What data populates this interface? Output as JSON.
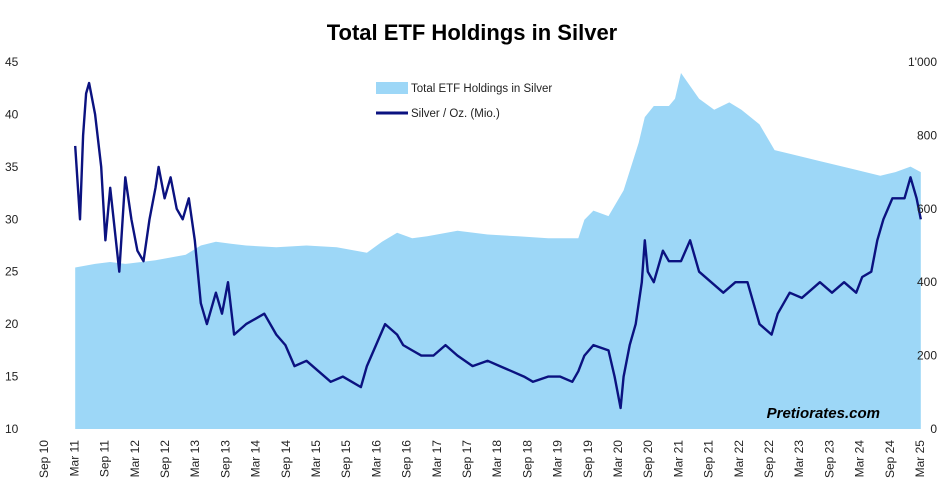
{
  "chart_data": {
    "type": "line",
    "title": "Total ETF Holdings in Silver",
    "xlabel": "",
    "ylabel": "",
    "x_ticks": [
      "Sep 10",
      "Mar 11",
      "Sep 11",
      "Mar 12",
      "Sep 12",
      "Mar 13",
      "Sep 13",
      "Mar 14",
      "Sep 14",
      "Mar 15",
      "Sep 15",
      "Mar 16",
      "Sep 16",
      "Mar 17",
      "Sep 17",
      "Mar 18",
      "Sep 18",
      "Mar 19",
      "Sep 19",
      "Mar 20",
      "Sep 20",
      "Mar 21",
      "Sep 21",
      "Mar 22",
      "Sep 22",
      "Mar 23",
      "Sep 23",
      "Mar 24",
      "Sep 24",
      "Mar 25"
    ],
    "y_left": {
      "min": 10,
      "max": 45,
      "ticks": [
        10,
        15,
        20,
        25,
        30,
        35,
        40,
        45
      ]
    },
    "y_right": {
      "min": 0,
      "max": 1000,
      "ticks": [
        "0",
        "200",
        "400",
        "600",
        "800",
        "1'000"
      ]
    },
    "legend_position": "top-center",
    "series": [
      {
        "name": "Total ETF Holdings in Silver",
        "kind": "area",
        "axis": "right",
        "color": "#9dd7f7",
        "x": [
          2011.17,
          2011.5,
          2011.75,
          2012.0,
          2012.5,
          2013.0,
          2013.25,
          2013.5,
          2013.75,
          2014.0,
          2014.5,
          2015.0,
          2015.5,
          2016.0,
          2016.25,
          2016.5,
          2016.75,
          2017.0,
          2017.5,
          2018.0,
          2018.5,
          2019.0,
          2019.5,
          2019.6,
          2019.75,
          2020.0,
          2020.25,
          2020.5,
          2020.6,
          2020.75,
          2021.0,
          2021.1,
          2021.2,
          2021.5,
          2021.75,
          2022.0,
          2022.2,
          2022.5,
          2022.75,
          2023.0,
          2023.5,
          2024.0,
          2024.5,
          2024.75,
          2025.0,
          2025.17
        ],
        "values": [
          440,
          450,
          455,
          450,
          460,
          475,
          500,
          510,
          505,
          500,
          495,
          500,
          495,
          480,
          510,
          535,
          520,
          525,
          540,
          530,
          525,
          520,
          520,
          570,
          595,
          580,
          650,
          780,
          850,
          880,
          880,
          900,
          970,
          900,
          870,
          890,
          870,
          830,
          760,
          750,
          730,
          710,
          690,
          700,
          715,
          700
        ]
      },
      {
        "name": "Silver / Oz. (Mio.)",
        "kind": "line",
        "axis": "left",
        "color": "#0b1280",
        "x": [
          2011.17,
          2011.25,
          2011.3,
          2011.35,
          2011.4,
          2011.5,
          2011.6,
          2011.67,
          2011.75,
          2011.9,
          2012.0,
          2012.1,
          2012.2,
          2012.3,
          2012.4,
          2012.5,
          2012.55,
          2012.65,
          2012.75,
          2012.85,
          2012.95,
          2013.05,
          2013.15,
          2013.25,
          2013.35,
          2013.5,
          2013.6,
          2013.7,
          2013.8,
          2014.0,
          2014.15,
          2014.3,
          2014.5,
          2014.65,
          2014.8,
          2015.0,
          2015.2,
          2015.4,
          2015.6,
          2015.75,
          2015.9,
          2016.0,
          2016.15,
          2016.3,
          2016.5,
          2016.6,
          2016.75,
          2016.9,
          2017.1,
          2017.3,
          2017.5,
          2017.75,
          2018.0,
          2018.2,
          2018.4,
          2018.6,
          2018.75,
          2019.0,
          2019.2,
          2019.4,
          2019.5,
          2019.6,
          2019.75,
          2020.0,
          2020.1,
          2020.2,
          2020.25,
          2020.35,
          2020.45,
          2020.55,
          2020.6,
          2020.65,
          2020.75,
          2020.9,
          2021.0,
          2021.2,
          2021.35,
          2021.5,
          2021.7,
          2021.9,
          2022.1,
          2022.3,
          2022.5,
          2022.7,
          2022.8,
          2022.9,
          2023.0,
          2023.2,
          2023.3,
          2023.5,
          2023.7,
          2023.9,
          2024.1,
          2024.2,
          2024.35,
          2024.45,
          2024.55,
          2024.7,
          2024.8,
          2024.9,
          2025.0,
          2025.1,
          2025.17
        ],
        "values": [
          37,
          30,
          38,
          42,
          43,
          40,
          35,
          28,
          33,
          25,
          34,
          30,
          27,
          26,
          30,
          33,
          35,
          32,
          34,
          31,
          30,
          32,
          28,
          22,
          20,
          23,
          21,
          24,
          19,
          20,
          20.5,
          21,
          19,
          18,
          16,
          16.5,
          15.5,
          14.5,
          15,
          14.5,
          14,
          16,
          18,
          20,
          19,
          18,
          17.5,
          17,
          17,
          18,
          17,
          16,
          16.5,
          16,
          15.5,
          15,
          14.5,
          15,
          15,
          14.5,
          15.5,
          17,
          18,
          17.5,
          15,
          12,
          15,
          18,
          20,
          24,
          28,
          25,
          24,
          27,
          26,
          26,
          28,
          25,
          24,
          23,
          24,
          24,
          20,
          19,
          21,
          22,
          23,
          22.5,
          23,
          24,
          23,
          24,
          23,
          24.5,
          25,
          28,
          30,
          32,
          32,
          32,
          34,
          32,
          30
        ]
      }
    ],
    "watermark": "Pretiorates.com"
  }
}
